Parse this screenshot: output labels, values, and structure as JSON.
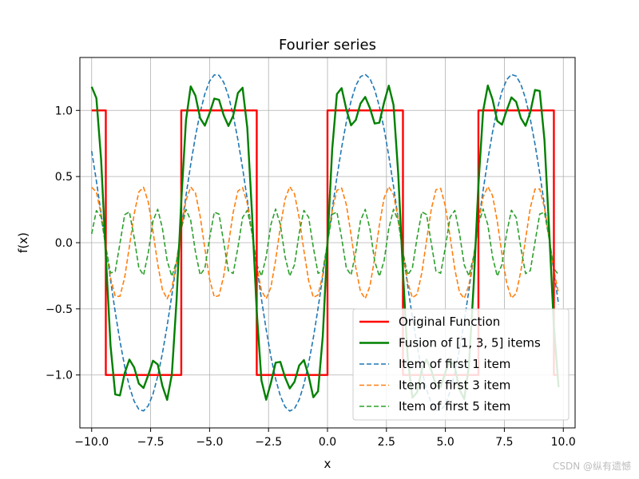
{
  "chart_data": {
    "type": "line",
    "title": "Fourier series",
    "xlabel": "x",
    "ylabel": "f(x)",
    "xlim": [
      -10.5,
      10.5
    ],
    "ylim": [
      -1.4,
      1.4
    ],
    "xticks": [
      -10.0,
      -7.5,
      -5.0,
      -2.5,
      0.0,
      2.5,
      5.0,
      7.5,
      10.0
    ],
    "xtick_labels": [
      "−10.0",
      "−7.5",
      "−5.0",
      "−2.5",
      "0.0",
      "2.5",
      "5.0",
      "7.5",
      "10.0"
    ],
    "yticks": [
      -1.0,
      -0.5,
      0.0,
      0.5,
      1.0
    ],
    "ytick_labels": [
      "−1.0",
      "−0.5",
      "0.0",
      "0.5",
      "1.0"
    ],
    "grid": true,
    "legend_position": "lower right",
    "x_range": [
      -10,
      9.8
    ],
    "series": [
      {
        "name": "Original Function",
        "kind": "square_wave",
        "color": "#ff0000",
        "style": "solid",
        "amplitude": 1,
        "period": 6.2832
      },
      {
        "name": "Fusion of [1, 3, 5] items",
        "kind": "partial_sum",
        "harmonics": [
          1,
          3,
          5
        ],
        "color": "#008000",
        "style": "solid"
      },
      {
        "name": "Item of first 1 item",
        "kind": "harmonic",
        "n": 1,
        "coefficient": 1.2732,
        "color": "#1f77b4",
        "style": "dashed"
      },
      {
        "name": "Item of first 3 item",
        "kind": "harmonic",
        "n": 3,
        "coefficient": 0.4244,
        "color": "#ff7f0e",
        "style": "dashed"
      },
      {
        "name": "Item of first 5 item",
        "kind": "harmonic",
        "n": 5,
        "coefficient": 0.2546,
        "color": "#2ca02c",
        "style": "dashed"
      }
    ]
  },
  "watermark": "CSDN @纵有遗憾"
}
